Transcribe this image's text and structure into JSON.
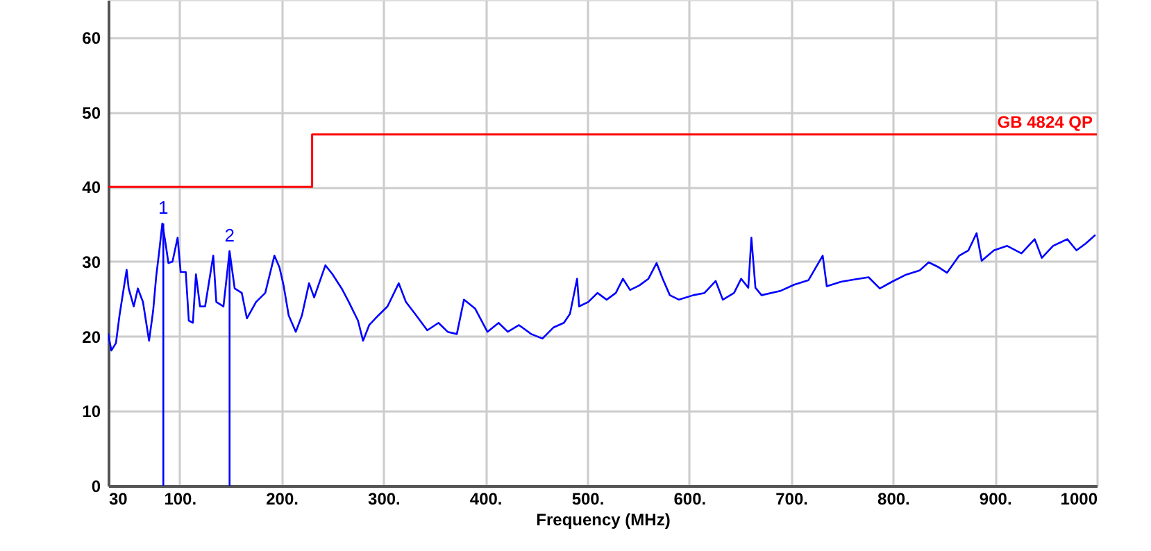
{
  "chart_data": {
    "type": "line",
    "xlabel": "Frequency (MHz)",
    "xlim": [
      30,
      1000
    ],
    "xticks": [
      30,
      {
        "value": 100,
        "label": "100."
      },
      {
        "value": 200,
        "label": "200."
      },
      {
        "value": 300,
        "label": "300."
      },
      {
        "value": 400,
        "label": "400."
      },
      {
        "value": 500,
        "label": "500."
      },
      {
        "value": 600,
        "label": "600."
      },
      {
        "value": 700,
        "label": "700."
      },
      {
        "value": 800,
        "label": "800."
      },
      {
        "value": 900,
        "label": "900."
      },
      1000
    ],
    "ylim": [
      0,
      65
    ],
    "yticks": [
      0,
      10,
      20,
      30,
      40,
      50,
      60
    ],
    "grid": true,
    "series": [
      {
        "color": "#0000ff",
        "x": [
          30,
          33,
          37.5,
          41,
          48,
          50,
          55,
          59,
          64,
          70,
          74,
          77,
          80,
          83,
          86,
          89,
          93,
          98,
          101,
          106,
          109,
          113,
          116,
          120,
          125,
          133,
          136,
          143,
          149,
          154,
          161,
          166,
          175,
          184,
          193,
          198,
          202,
          207,
          214,
          220,
          227,
          232,
          243,
          250,
          259,
          266,
          275,
          280,
          286,
          295,
          304,
          315,
          322,
          331,
          343,
          354,
          363,
          372,
          379,
          390,
          402,
          413,
          422,
          433,
          445,
          456,
          467,
          477,
          483,
          490,
          492,
          501,
          510,
          519,
          528,
          535,
          542,
          551,
          560,
          568,
          574,
          581,
          590,
          604,
          615,
          626,
          633,
          644,
          651,
          658,
          661,
          665,
          671,
          690,
          703,
          717,
          731,
          735,
          749,
          762,
          776,
          787,
          799,
          812,
          826,
          835,
          844,
          853,
          865,
          874,
          882,
          887,
          899,
          912,
          926,
          939,
          946,
          957,
          971,
          980,
          989,
          998
        ],
        "values": [
          20.3,
          18.1,
          19.1,
          22.8,
          28.9,
          26.4,
          24,
          26.4,
          24.6,
          19.4,
          23.4,
          28,
          31.4,
          35.1,
          32.6,
          29.8,
          30,
          33.2,
          28.6,
          28.6,
          22.1,
          21.8,
          28.3,
          24,
          24,
          30.8,
          24.6,
          24,
          31.4,
          26.4,
          25.8,
          22.4,
          24.6,
          25.8,
          30.8,
          29.2,
          26.8,
          22.8,
          20.6,
          22.8,
          27.1,
          25.2,
          29.5,
          28.3,
          26.4,
          24.6,
          22.1,
          19.4,
          21.5,
          22.8,
          24,
          27.1,
          24.6,
          23,
          20.8,
          21.8,
          20.6,
          20.3,
          24.9,
          23.7,
          20.6,
          21.8,
          20.6,
          21.5,
          20.3,
          19.7,
          21.2,
          21.8,
          23,
          27.7,
          24,
          24.6,
          25.8,
          24.9,
          25.8,
          27.7,
          26.2,
          26.8,
          27.7,
          29.8,
          27.7,
          25.5,
          24.9,
          25.5,
          25.8,
          27.4,
          24.9,
          25.8,
          27.7,
          26.5,
          33.2,
          26.5,
          25.5,
          26.1,
          26.9,
          27.5,
          30.8,
          26.7,
          27.3,
          27.6,
          27.9,
          26.4,
          27.3,
          28.2,
          28.8,
          29.9,
          29.3,
          28.5,
          30.8,
          31.5,
          33.8,
          30.1,
          31.5,
          32.1,
          31.1,
          33,
          30.5,
          32.1,
          33,
          31.5,
          32.4,
          33.5
        ]
      },
      {
        "type": "step",
        "name": "GB 4824 QP",
        "color": "#ff0000",
        "x": [
          30,
          230,
          1000
        ],
        "values": [
          40,
          47,
          47
        ]
      }
    ],
    "annotations": [
      {
        "text": "1",
        "x": 84,
        "y": 35.1
      },
      {
        "text": "2",
        "x": 149,
        "y": 31.4
      }
    ]
  }
}
